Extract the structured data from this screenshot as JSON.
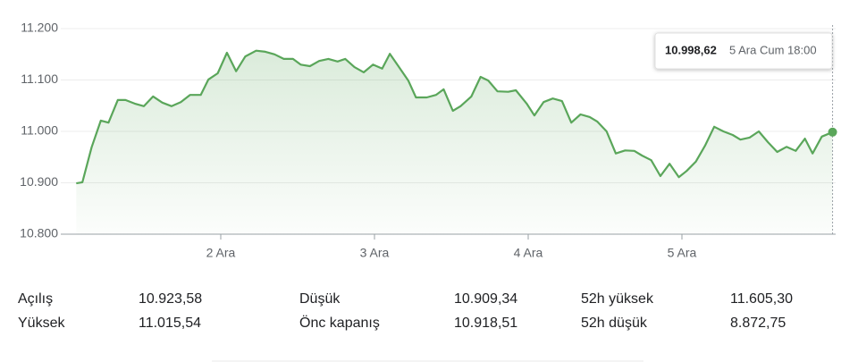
{
  "chart_data": {
    "type": "line",
    "x": [
      1.06,
      1.1,
      1.16,
      1.22,
      1.27,
      1.33,
      1.38,
      1.44,
      1.5,
      1.56,
      1.62,
      1.68,
      1.74,
      1.8,
      1.87,
      1.92,
      1.98,
      2.04,
      2.1,
      2.16,
      2.23,
      2.29,
      2.35,
      2.41,
      2.47,
      2.52,
      2.58,
      2.64,
      2.7,
      2.76,
      2.81,
      2.87,
      2.93,
      2.99,
      3.05,
      3.1,
      3.16,
      3.22,
      3.27,
      3.34,
      3.4,
      3.45,
      3.51,
      3.56,
      3.63,
      3.69,
      3.74,
      3.8,
      3.87,
      3.92,
      3.99,
      4.04,
      4.1,
      4.16,
      4.22,
      4.28,
      4.34,
      4.4,
      4.45,
      4.51,
      4.57,
      4.63,
      4.69,
      4.74,
      4.8,
      4.86,
      4.92,
      4.98,
      5.03,
      5.09,
      5.15,
      5.21,
      5.27,
      5.33,
      5.38,
      5.44,
      5.5,
      5.56,
      5.62,
      5.68,
      5.74,
      5.8,
      5.85,
      5.91,
      5.98
    ],
    "series": [
      {
        "color": "#5aa65a",
        "values": [
          10899,
          10901,
          10969,
          11021,
          11017,
          11061,
          11061,
          11054,
          11049,
          11068,
          11056,
          11049,
          11057,
          11071,
          11071,
          11101,
          11113,
          11153,
          11117,
          11146,
          11157,
          11155,
          11150,
          11141,
          11141,
          11130,
          11127,
          11137,
          11141,
          11136,
          11141,
          11125,
          11115,
          11130,
          11122,
          11151,
          11125,
          11099,
          11066,
          11066,
          11071,
          11082,
          11040,
          11049,
          11068,
          11106,
          11099,
          11078,
          11077,
          11080,
          11054,
          11031,
          11057,
          11064,
          11059,
          11017,
          11033,
          11028,
          11019,
          11000,
          10957,
          10963,
          10962,
          10953,
          10944,
          10913,
          10937,
          10911,
          10923,
          10941,
          10972,
          11009,
          11000,
          10993,
          10984,
          10988,
          11000,
          10979,
          10960,
          10970,
          10962,
          10986,
          10957,
          10990,
          10998.62
        ]
      }
    ],
    "xlim": [
      1,
      6
    ],
    "xticks": [
      {
        "value": 2,
        "label": "2 Ara"
      },
      {
        "value": 3,
        "label": "3 Ara"
      },
      {
        "value": 4,
        "label": "4 Ara"
      },
      {
        "value": 5,
        "label": "5 Ara"
      }
    ],
    "ylim": [
      10800,
      11200
    ],
    "yticks": [
      {
        "value": 10800,
        "label": "10.800"
      },
      {
        "value": 10900,
        "label": "10.900"
      },
      {
        "value": 11000,
        "label": "11.000"
      },
      {
        "value": 11100,
        "label": "11.100"
      },
      {
        "value": 11200,
        "label": "11.200"
      }
    ],
    "grid": true,
    "tooltip": {
      "value": 10998.62,
      "value_label": "10.998,62",
      "date": "5 Ara Cum 18:00"
    }
  },
  "stats": [
    {
      "label": "Açılış",
      "value": "10.923,58"
    },
    {
      "label": "Yüksek",
      "value": "11.015,54"
    },
    {
      "label": "Düşük",
      "value": "10.909,34"
    },
    {
      "label": "Önc kapanış",
      "value": "10.918,51"
    },
    {
      "label": "52h yüksek",
      "value": "11.605,30"
    },
    {
      "label": "52h düşük",
      "value": "8.872,75"
    }
  ]
}
